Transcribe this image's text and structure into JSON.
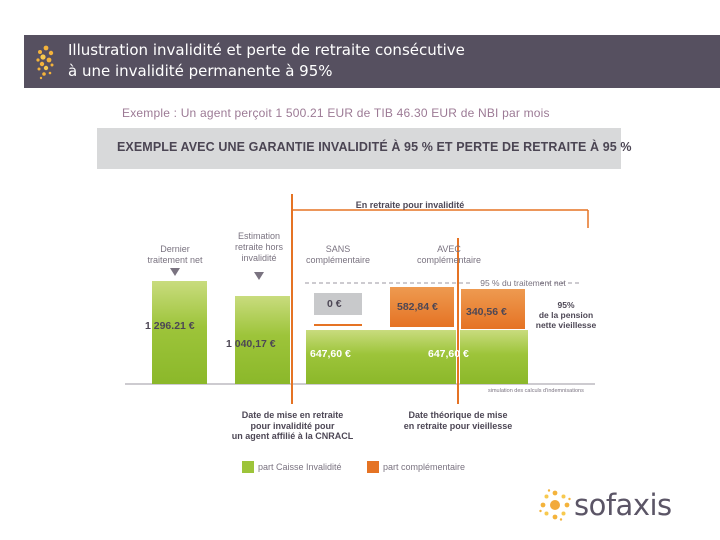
{
  "header": {
    "title_line1": "Illustration invalidité et perte de retraite consécutive",
    "title_line2": "à une invalidité permanente à 95%"
  },
  "example_text": "Exemple : Un agent perçoit 1 500.21 EUR de TIB 46.30 EUR de NBI par mois",
  "banner_title": "EXEMPLE AVEC UNE GARANTIE INVALIDITÉ À 95 % ET PERTE DE RETRAITE À 95 %",
  "diagram": {
    "retraite_label": "En retraite pour invalidité",
    "col1_label": [
      "Dernier",
      "traitement net"
    ],
    "col2_label": [
      "Estimation",
      "retraite hors",
      "invalidité"
    ],
    "col3_label": [
      "SANS",
      "complémentaire"
    ],
    "col4_label": [
      "AVEC",
      "complémentaire"
    ],
    "ref_line_label": "95 % du traitement net",
    "side_label": [
      "95%",
      "de la pension",
      "nette vieillesse"
    ],
    "values": {
      "dernier_traitement": "1 296.21 €",
      "estimation_retraite": "1 040,17 €",
      "sans_top": "0 €",
      "sans_bottom": "647,60 €",
      "avec_orange": "582,84 €",
      "avec_bottom": "647,60 €",
      "complement_vieillesse": "340,56 €"
    },
    "note": "simulation des calculs d'indemnisations",
    "date1": [
      "Date de mise en retraite",
      "pour invalidité pour",
      "un agent affilié à la CNRACL"
    ],
    "date2": [
      "Date théorique de mise",
      "en retraite pour vieillesse"
    ]
  },
  "legend": {
    "green_label": "part Caisse Invalidité",
    "orange_label": "part complémentaire",
    "green_color": "#9dc43a",
    "orange_color": "#e57324"
  },
  "logo": {
    "text": "sofaxis"
  }
}
